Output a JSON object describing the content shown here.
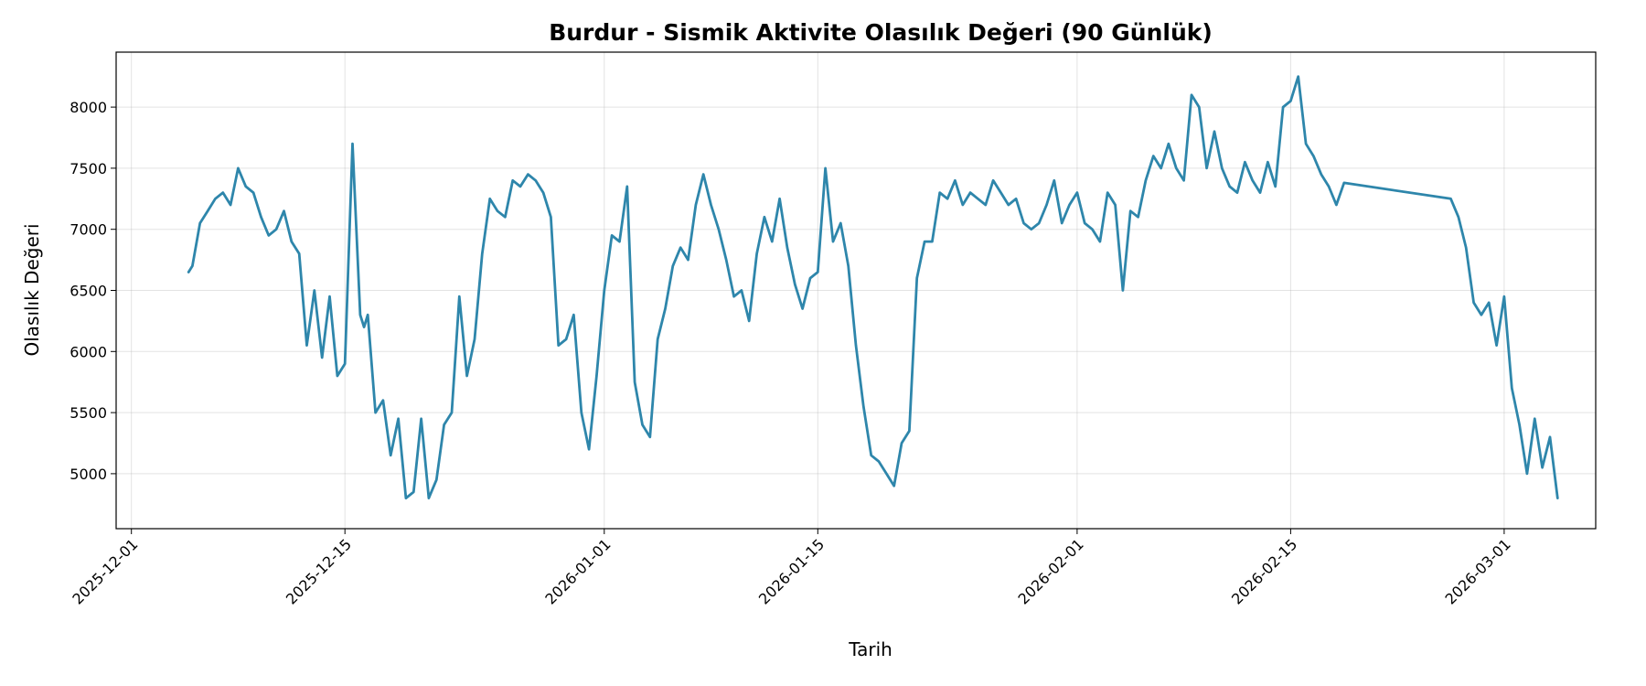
{
  "chart_data": {
    "type": "line",
    "title": "Burdur - Sismik Aktivite Olasılık Değeri (90 Günlük)",
    "xlabel": "Tarih",
    "ylabel": "Olasılık Değeri",
    "xlim": [
      "2025-11-30",
      "2026-03-07"
    ],
    "ylim": [
      4550,
      8450
    ],
    "x_ticks": [
      "2025-12-01",
      "2025-12-15",
      "2026-01-01",
      "2026-01-15",
      "2026-02-01",
      "2026-02-15",
      "2026-03-01"
    ],
    "y_ticks": [
      5000,
      5500,
      6000,
      6500,
      7000,
      7500,
      8000
    ],
    "grid": true,
    "color": "#2e86ab",
    "series": [
      {
        "x": [
          "2025-12-04T18:00",
          "2025-12-05T00:00",
          "2025-12-05T12:00",
          "2025-12-06T00:00",
          "2025-12-06T12:00",
          "2025-12-07T00:00",
          "2025-12-07T12:00",
          "2025-12-08T00:00",
          "2025-12-08T12:00",
          "2025-12-09T00:00",
          "2025-12-09T12:00",
          "2025-12-10T00:00",
          "2025-12-10T12:00",
          "2025-12-11T00:00",
          "2025-12-11T12:00",
          "2025-12-12T00:00",
          "2025-12-12T12:00",
          "2025-12-13T00:00",
          "2025-12-13T12:00",
          "2025-12-14T00:00",
          "2025-12-14T12:00",
          "2025-12-15T00:00",
          "2025-12-15T12:00",
          "2025-12-16T00:00",
          "2025-12-16T06:00",
          "2025-12-16T12:00",
          "2025-12-17T00:00",
          "2025-12-17T12:00",
          "2025-12-18T00:00",
          "2025-12-18T12:00",
          "2025-12-19T00:00",
          "2025-12-19T12:00",
          "2025-12-20T00:00",
          "2025-12-20T12:00",
          "2025-12-21T00:00",
          "2025-12-21T12:00",
          "2025-12-22T00:00",
          "2025-12-22T12:00",
          "2025-12-23T00:00",
          "2025-12-23T12:00",
          "2025-12-24T00:00",
          "2025-12-24T12:00",
          "2025-12-25T00:00",
          "2025-12-25T12:00",
          "2025-12-26T00:00",
          "2025-12-26T12:00",
          "2025-12-27T00:00",
          "2025-12-27T12:00",
          "2025-12-28T00:00",
          "2025-12-28T12:00",
          "2025-12-29T00:00",
          "2025-12-29T12:00",
          "2025-12-30T00:00",
          "2025-12-30T12:00",
          "2025-12-31T00:00",
          "2025-12-31T12:00",
          "2026-01-01T00:00",
          "2026-01-01T12:00",
          "2026-01-02T00:00",
          "2026-01-02T12:00",
          "2026-01-03T00:00",
          "2026-01-03T12:00",
          "2026-01-04T00:00",
          "2026-01-04T12:00",
          "2026-01-05T00:00",
          "2026-01-05T12:00",
          "2026-01-06T00:00",
          "2026-01-06T12:00",
          "2026-01-07T00:00",
          "2026-01-07T12:00",
          "2026-01-08T00:00",
          "2026-01-08T12:00",
          "2026-01-09T00:00",
          "2026-01-09T12:00",
          "2026-01-10T00:00",
          "2026-01-10T12:00",
          "2026-01-11T00:00",
          "2026-01-11T12:00",
          "2026-01-12T00:00",
          "2026-01-12T12:00",
          "2026-01-13T00:00",
          "2026-01-13T12:00",
          "2026-01-14T00:00",
          "2026-01-14T12:00",
          "2026-01-15T00:00",
          "2026-01-15T12:00",
          "2026-01-16T00:00",
          "2026-01-16T12:00",
          "2026-01-17T00:00",
          "2026-01-17T12:00",
          "2026-01-18T00:00",
          "2026-01-18T12:00",
          "2026-01-19T00:00",
          "2026-01-19T12:00",
          "2026-01-20T00:00",
          "2026-01-20T12:00",
          "2026-01-21T00:00",
          "2026-01-21T12:00",
          "2026-01-22T00:00",
          "2026-01-22T12:00",
          "2026-01-23T00:00",
          "2026-01-23T12:00",
          "2026-01-24T00:00",
          "2026-01-24T12:00",
          "2026-01-25T00:00",
          "2026-01-25T12:00",
          "2026-01-26T00:00",
          "2026-01-26T12:00",
          "2026-01-27T00:00",
          "2026-01-27T12:00",
          "2026-01-28T00:00",
          "2026-01-28T12:00",
          "2026-01-29T00:00",
          "2026-01-29T12:00",
          "2026-01-30T00:00",
          "2026-01-30T12:00",
          "2026-01-31T00:00",
          "2026-01-31T12:00",
          "2026-02-01T00:00",
          "2026-02-01T12:00",
          "2026-02-02T00:00",
          "2026-02-02T12:00",
          "2026-02-03T00:00",
          "2026-02-03T12:00",
          "2026-02-04T00:00",
          "2026-02-04T12:00",
          "2026-02-05T00:00",
          "2026-02-05T12:00",
          "2026-02-06T00:00",
          "2026-02-06T12:00",
          "2026-02-07T00:00",
          "2026-02-07T12:00",
          "2026-02-08T00:00",
          "2026-02-08T12:00",
          "2026-02-09T00:00",
          "2026-02-09T12:00",
          "2026-02-10T00:00",
          "2026-02-10T12:00",
          "2026-02-11T00:00",
          "2026-02-11T12:00",
          "2026-02-12T00:00",
          "2026-02-12T12:00",
          "2026-02-13T00:00",
          "2026-02-13T12:00",
          "2026-02-14T00:00",
          "2026-02-14T12:00",
          "2026-02-15T00:00",
          "2026-02-15T12:00",
          "2026-02-16T00:00",
          "2026-02-16T12:00",
          "2026-02-17T00:00",
          "2026-02-17T12:00",
          "2026-02-18T00:00",
          "2026-02-18T12:00",
          "2026-02-25T12:00",
          "2026-02-26T00:00",
          "2026-02-26T12:00",
          "2026-02-27T00:00",
          "2026-02-27T12:00",
          "2026-02-28T00:00",
          "2026-02-28T12:00",
          "2026-03-01T00:00",
          "2026-03-01T12:00",
          "2026-03-02T00:00",
          "2026-03-02T12:00",
          "2026-03-03T00:00",
          "2026-03-03T12:00",
          "2026-03-04T00:00",
          "2026-03-04T12:00"
        ],
        "y": [
          6650,
          6700,
          7050,
          7150,
          7250,
          7300,
          7200,
          7500,
          7350,
          7300,
          7100,
          6950,
          7000,
          7150,
          6900,
          6800,
          6050,
          6500,
          5950,
          6450,
          5800,
          5900,
          7700,
          6300,
          6200,
          6300,
          5500,
          5600,
          5150,
          5450,
          4800,
          4850,
          5450,
          4800,
          4950,
          5400,
          5500,
          6450,
          5800,
          6100,
          6800,
          7250,
          7150,
          7100,
          7400,
          7350,
          7450,
          7400,
          7300,
          7100,
          6050,
          6100,
          6300,
          5500,
          5200,
          5800,
          6500,
          6950,
          6900,
          7350,
          5750,
          5400,
          5300,
          6100,
          6350,
          6700,
          6850,
          6750,
          7200,
          7450,
          7200,
          7000,
          6750,
          6450,
          6500,
          6250,
          6800,
          7100,
          6900,
          7250,
          6850,
          6550,
          6350,
          6600,
          6650,
          7500,
          6900,
          7050,
          6700,
          6050,
          5550,
          5150,
          5100,
          5000,
          4900,
          5250,
          5350,
          6600,
          6900,
          6900,
          7300,
          7250,
          7400,
          7200,
          7300,
          7250,
          7200,
          7400,
          7300,
          7200,
          7250,
          7050,
          7000,
          7050,
          7200,
          7400,
          7050,
          7200,
          7300,
          7050,
          7000,
          6900,
          7300,
          7200,
          6500,
          7150,
          7100,
          7400,
          7600,
          7500,
          7700,
          7500,
          7400,
          8100,
          8000,
          7500,
          7800,
          7500,
          7350,
          7300,
          7550,
          7400,
          7300,
          7550,
          7350,
          8000,
          8050,
          8250,
          7700,
          7600,
          7450,
          7350,
          7200,
          7380,
          7250,
          7100,
          6850,
          6400,
          6300,
          6400,
          6050,
          6450,
          5700,
          5400,
          5000,
          5450,
          5050,
          5300,
          4800
        ]
      }
    ]
  }
}
